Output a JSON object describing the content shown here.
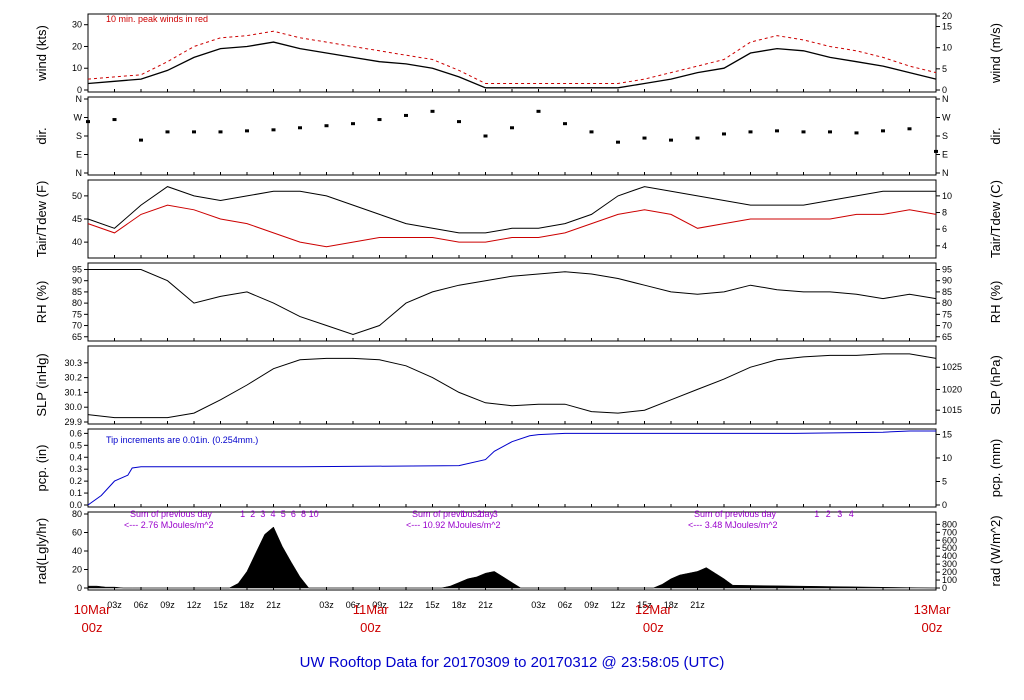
{
  "title": "UW Rooftop Data for 20170309  to  20170312 @ 23:58:05  (UTC)",
  "colors": {
    "red": "#cc0000",
    "blue": "#0000cc",
    "purple": "#9900cc",
    "black": "#000000"
  },
  "x_axis": {
    "hours": [
      "03z",
      "06z",
      "09z",
      "12z",
      "15z",
      "18z",
      "21z",
      "03z",
      "06z",
      "09z",
      "12z",
      "15z",
      "18z",
      "21z",
      "03z",
      "06z",
      "09z",
      "12z",
      "15z",
      "18z",
      "21z"
    ],
    "dates": [
      {
        "day": "10Mar",
        "hour": "00z"
      },
      {
        "day": "11Mar",
        "hour": "00z"
      },
      {
        "day": "12Mar",
        "hour": "00z"
      },
      {
        "day": "13Mar",
        "hour": "00z"
      }
    ]
  },
  "panels": {
    "wind": {
      "left_label": "wind (kts)",
      "right_label": "wind (m/s)",
      "left_ticks": [
        "0",
        "10",
        "20",
        "30"
      ],
      "right_ticks": [
        "0",
        "5",
        "10",
        "15",
        "20"
      ],
      "note": "10 min. peak winds in red"
    },
    "dir": {
      "left_label": "dir.",
      "right_label": "dir.",
      "ticks": [
        "N",
        "E",
        "S",
        "W",
        "N"
      ]
    },
    "temp": {
      "left_label": "Tair/Tdew (F)",
      "right_label": "Tair/Tdew (C)",
      "left_ticks": [
        "40",
        "45",
        "50"
      ],
      "right_ticks": [
        "4",
        "6",
        "8",
        "10"
      ]
    },
    "rh": {
      "left_label": "RH (%)",
      "right_label": "RH (%)",
      "ticks": [
        "65",
        "70",
        "75",
        "80",
        "85",
        "90",
        "95"
      ]
    },
    "slp": {
      "left_label": "SLP (inHg)",
      "right_label": "SLP (hPa)",
      "left_ticks": [
        "29.9",
        "30.0",
        "30.1",
        "30.2",
        "30.3"
      ],
      "right_ticks": [
        "1015",
        "1020",
        "1025"
      ]
    },
    "pcp": {
      "left_label": "pcp. (in)",
      "right_label": "pcp. (mm)",
      "left_ticks": [
        "0.0",
        "0.1",
        "0.2",
        "0.3",
        "0.4",
        "0.5",
        "0.6"
      ],
      "right_ticks": [
        "0",
        "5",
        "10",
        "15"
      ],
      "note": "Tip increments are 0.01in. (0.254mm.)"
    },
    "rad": {
      "left_label": "rad(Lgly/hr)",
      "right_label": "rad (W/m^2)",
      "left_ticks": [
        "0",
        "20",
        "40",
        "60",
        "80"
      ],
      "right_ticks": [
        "0",
        "100",
        "200",
        "300",
        "400",
        "500",
        "600",
        "700",
        "800"
      ],
      "sums": [
        {
          "heading": "Sum of previous day",
          "value": "<--- 2.76 MJoules/m^2"
        },
        {
          "heading": "Sum of previous day",
          "value": "<--- 10.92 MJoules/m^2"
        },
        {
          "heading": "Sum of previous day",
          "value": "<--- 3.48 MJoules/m^2"
        }
      ],
      "markers_day2": [
        "1",
        "2",
        "3",
        "4",
        "5",
        "6",
        "8",
        "10"
      ],
      "markers_day3": [
        "1",
        "2",
        "3"
      ],
      "markers_day4": [
        "1",
        "2",
        "3",
        "4"
      ]
    }
  },
  "chart_data": [
    {
      "type": "line",
      "name": "wind",
      "x": [
        0,
        3,
        6,
        9,
        12,
        15,
        18,
        21,
        24,
        27,
        30,
        33,
        36,
        39,
        42,
        45,
        48,
        51,
        54,
        57,
        60,
        63,
        66,
        69,
        72,
        75,
        78,
        81,
        84,
        87,
        90,
        93,
        96
      ],
      "series": [
        {
          "name": "wind",
          "color": "#000000",
          "values": [
            3,
            4,
            5,
            9,
            15,
            19,
            20,
            22,
            19,
            17,
            15,
            13,
            12,
            10,
            6,
            1,
            1,
            1,
            1,
            1,
            1,
            3,
            5,
            8,
            10,
            17,
            19,
            18,
            15,
            13,
            11,
            8,
            5
          ]
        },
        {
          "name": "10 min. peak winds",
          "color": "#cc0000",
          "values": [
            5,
            6,
            7,
            13,
            20,
            24,
            25,
            27,
            24,
            22,
            20,
            18,
            16,
            14,
            9,
            3,
            3,
            3,
            3,
            3,
            3,
            5,
            8,
            11,
            14,
            22,
            25,
            23,
            20,
            18,
            15,
            11,
            8
          ]
        }
      ],
      "ylim": [
        0,
        34
      ]
    },
    {
      "type": "scatter",
      "name": "dir",
      "x": [
        0,
        3,
        6,
        9,
        12,
        15,
        18,
        21,
        24,
        27,
        30,
        33,
        36,
        39,
        42,
        45,
        48,
        51,
        54,
        57,
        60,
        63,
        66,
        69,
        72,
        75,
        78,
        81,
        84,
        87,
        90,
        93,
        96
      ],
      "values": [
        250,
        260,
        160,
        200,
        200,
        200,
        205,
        210,
        220,
        230,
        240,
        260,
        280,
        300,
        250,
        180,
        220,
        300,
        240,
        200,
        150,
        170,
        160,
        170,
        190,
        200,
        205,
        200,
        200,
        195,
        205,
        215,
        105
      ],
      "ylim": [
        0,
        360
      ]
    },
    {
      "type": "line",
      "name": "temp",
      "x": [
        0,
        3,
        6,
        9,
        12,
        15,
        18,
        21,
        24,
        27,
        30,
        33,
        36,
        39,
        42,
        45,
        48,
        51,
        54,
        57,
        60,
        63,
        66,
        69,
        72,
        75,
        78,
        81,
        84,
        87,
        90,
        93,
        96
      ],
      "series": [
        {
          "name": "Tair",
          "color": "#000000",
          "values": [
            45,
            43,
            48,
            52,
            50,
            49,
            50,
            51,
            51,
            50,
            48,
            46,
            44,
            43,
            42,
            42,
            43,
            43,
            44,
            46,
            50,
            52,
            51,
            50,
            49,
            48,
            48,
            48,
            49,
            50,
            51,
            51,
            51
          ]
        },
        {
          "name": "Tdew",
          "color": "#cc0000",
          "values": [
            44,
            42,
            46,
            48,
            47,
            45,
            44,
            42,
            40,
            39,
            40,
            41,
            41,
            41,
            40,
            40,
            41,
            41,
            42,
            44,
            46,
            47,
            46,
            43,
            44,
            45,
            45,
            45,
            45,
            46,
            46,
            47,
            46
          ]
        }
      ],
      "ylim": [
        37,
        53
      ]
    },
    {
      "type": "line",
      "name": "rh",
      "x": [
        0,
        3,
        6,
        9,
        12,
        15,
        18,
        21,
        24,
        27,
        30,
        33,
        36,
        39,
        42,
        45,
        48,
        51,
        54,
        57,
        60,
        63,
        66,
        69,
        72,
        75,
        78,
        81,
        84,
        87,
        90,
        93,
        96
      ],
      "values": [
        95,
        95,
        95,
        90,
        80,
        83,
        85,
        80,
        74,
        70,
        66,
        70,
        80,
        85,
        88,
        90,
        92,
        93,
        94,
        93,
        91,
        88,
        85,
        84,
        85,
        88,
        86,
        85,
        85,
        84,
        82,
        84,
        82
      ],
      "ylim": [
        64,
        97
      ]
    },
    {
      "type": "line",
      "name": "slp",
      "x": [
        0,
        3,
        6,
        9,
        12,
        15,
        18,
        21,
        24,
        27,
        30,
        33,
        36,
        39,
        42,
        45,
        48,
        51,
        54,
        57,
        60,
        63,
        66,
        69,
        72,
        75,
        78,
        81,
        84,
        87,
        90,
        93,
        96
      ],
      "values": [
        29.95,
        29.93,
        29.93,
        29.93,
        29.96,
        30.05,
        30.15,
        30.26,
        30.32,
        30.33,
        30.33,
        30.32,
        30.28,
        30.2,
        30.1,
        30.03,
        30.01,
        30.02,
        30.02,
        29.97,
        29.96,
        29.98,
        30.05,
        30.12,
        30.19,
        30.27,
        30.32,
        30.34,
        30.35,
        30.35,
        30.36,
        30.36,
        30.33
      ],
      "ylim": [
        29.9,
        30.4
      ]
    },
    {
      "type": "line",
      "name": "pcp",
      "x": [
        0,
        1.5,
        3,
        4.5,
        5,
        6,
        24,
        42,
        45,
        46,
        48,
        50,
        51,
        54,
        72,
        80,
        90,
        93,
        96
      ],
      "values": [
        0.0,
        0.08,
        0.2,
        0.25,
        0.31,
        0.32,
        0.32,
        0.33,
        0.38,
        0.45,
        0.53,
        0.58,
        0.59,
        0.6,
        0.6,
        0.6,
        0.61,
        0.62,
        0.62
      ],
      "ylim": [
        0,
        0.62
      ]
    },
    {
      "type": "area",
      "name": "rad",
      "x": [
        0,
        1,
        2,
        3,
        4,
        5,
        16,
        17,
        18,
        19,
        20,
        21,
        22,
        23,
        24,
        25,
        40,
        41,
        42,
        43,
        44,
        45,
        46,
        47,
        48,
        49,
        64,
        65,
        66,
        67,
        68,
        69,
        70,
        71,
        72,
        73,
        96
      ],
      "values": [
        2,
        2,
        1,
        1,
        0,
        0,
        0,
        5,
        18,
        38,
        58,
        66,
        45,
        28,
        12,
        0,
        0,
        2,
        6,
        10,
        12,
        16,
        18,
        12,
        6,
        0,
        0,
        4,
        10,
        14,
        16,
        18,
        22,
        16,
        10,
        3,
        0
      ],
      "ylim": [
        0,
        80
      ]
    }
  ]
}
